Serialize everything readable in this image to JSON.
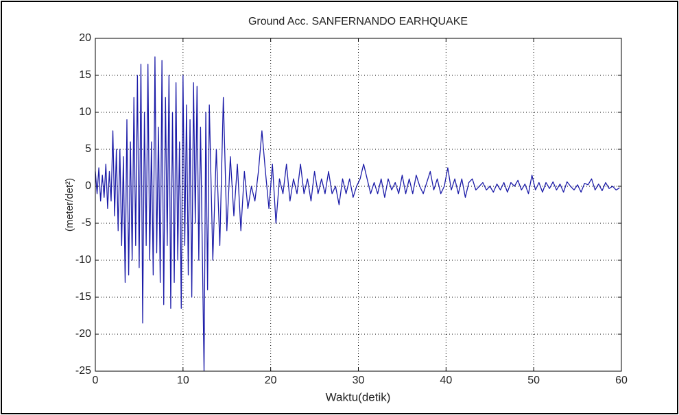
{
  "chart_data": {
    "type": "line",
    "title": "Ground Acc. SANFERNANDO EARHQUAKE",
    "x_label": "Waktu(detik)",
    "y_label": "(meter/det²)",
    "color": "#1c1ca8",
    "grid": true,
    "xlim": [
      0,
      60
    ],
    "ylim": [
      -25,
      20
    ],
    "xticks": [
      0,
      10,
      20,
      30,
      40,
      50,
      60
    ],
    "yticks": [
      -25,
      -20,
      -15,
      -10,
      -5,
      0,
      5,
      10,
      15,
      20
    ],
    "x": [
      0,
      0.2,
      0.4,
      0.6,
      0.8,
      1,
      1.2,
      1.4,
      1.6,
      1.8,
      2,
      2.2,
      2.4,
      2.6,
      2.8,
      3,
      3.2,
      3.4,
      3.6,
      3.8,
      4,
      4.2,
      4.4,
      4.6,
      4.8,
      5,
      5.2,
      5.4,
      5.6,
      5.8,
      6,
      6.2,
      6.4,
      6.6,
      6.8,
      7,
      7.2,
      7.4,
      7.6,
      7.8,
      8,
      8.2,
      8.4,
      8.6,
      8.8,
      9,
      9.2,
      9.4,
      9.6,
      9.8,
      10,
      10.2,
      10.4,
      10.6,
      10.8,
      11,
      11.2,
      11.4,
      11.6,
      11.8,
      12,
      12.4,
      12.6,
      12.8,
      13,
      13.4,
      13.8,
      14.2,
      14.6,
      15,
      15.4,
      15.8,
      16.2,
      16.6,
      17,
      17.4,
      17.8,
      18.2,
      18.6,
      19,
      19.4,
      19.8,
      20.2,
      20.6,
      21,
      21.4,
      21.8,
      22.2,
      22.6,
      23,
      23.4,
      23.8,
      24.2,
      24.6,
      25,
      25.4,
      25.8,
      26.2,
      26.6,
      27,
      27.4,
      27.8,
      28.2,
      28.6,
      29,
      29.4,
      29.8,
      30.2,
      30.6,
      31,
      31.4,
      31.8,
      32.2,
      32.6,
      33,
      33.4,
      33.8,
      34.2,
      34.6,
      35,
      35.4,
      35.8,
      36.2,
      36.6,
      37,
      37.4,
      37.8,
      38.2,
      38.6,
      39,
      39.4,
      39.8,
      40.2,
      40.6,
      41,
      41.4,
      41.8,
      42.2,
      42.6,
      43,
      43.4,
      43.8,
      44.2,
      44.6,
      45,
      45.4,
      45.8,
      46.2,
      46.6,
      47,
      47.4,
      47.8,
      48.2,
      48.6,
      49,
      49.4,
      49.8,
      50.2,
      50.6,
      51,
      51.4,
      51.8,
      52.2,
      52.6,
      53,
      53.4,
      53.8,
      54.2,
      54.6,
      55,
      55.4,
      55.8,
      56.2,
      56.6,
      57,
      57.4,
      57.8,
      58.2,
      58.6,
      59,
      59.4,
      59.8
    ],
    "values": [
      2,
      -1,
      2.5,
      -2,
      1.5,
      -1.5,
      3,
      -3,
      2,
      -2,
      7.5,
      -4,
      5,
      -6,
      5,
      -8,
      4,
      -13,
      9,
      -12,
      6,
      -10,
      12,
      -8,
      15,
      -11,
      16.5,
      -18.5,
      10,
      -8,
      16.5,
      -10,
      6,
      -12,
      17.5,
      -9,
      8,
      -13,
      17,
      -16,
      12,
      -8,
      15,
      -16.5,
      10,
      -13,
      14,
      -10,
      6,
      -16.5,
      15,
      -8,
      11,
      -12,
      9,
      -15,
      14,
      -5,
      13.5,
      -10,
      8,
      -25,
      10,
      -14,
      11,
      -10,
      5,
      -8,
      12,
      -6,
      4,
      -4,
      3,
      -6,
      2,
      -3,
      0,
      -2,
      2,
      7.5,
      2,
      -3,
      3,
      -5,
      1,
      -1,
      3,
      -2,
      1,
      -1,
      3,
      -1,
      1,
      -2,
      2,
      -1,
      1,
      -1,
      2,
      -1,
      0,
      -2.5,
      1,
      -1,
      1,
      -1.5,
      0,
      1,
      3,
      1,
      -1,
      0.5,
      -1,
      1,
      -1.5,
      1,
      -0.5,
      0.5,
      -1,
      1.5,
      -1,
      1,
      -1,
      1.5,
      0,
      -1,
      0.5,
      2,
      -0.5,
      1,
      -1,
      0,
      2.5,
      -0.5,
      1,
      -1,
      1,
      -1.5,
      0.5,
      1,
      -0.5,
      0,
      0.5,
      -0.5,
      0,
      -0.8,
      0.3,
      -0.5,
      0.5,
      -0.8,
      0.5,
      0,
      0.8,
      -0.5,
      0.3,
      -1,
      1.5,
      -0.5,
      0.5,
      -0.8,
      0.5,
      -0.3,
      0.6,
      -0.5,
      0.3,
      -0.8,
      0.6,
      0,
      -0.5,
      0.2,
      -0.8,
      0.4,
      0.2,
      1,
      -0.5,
      0.3,
      -0.6,
      0.5,
      -0.3,
      0,
      -0.5,
      -0.2
    ]
  }
}
